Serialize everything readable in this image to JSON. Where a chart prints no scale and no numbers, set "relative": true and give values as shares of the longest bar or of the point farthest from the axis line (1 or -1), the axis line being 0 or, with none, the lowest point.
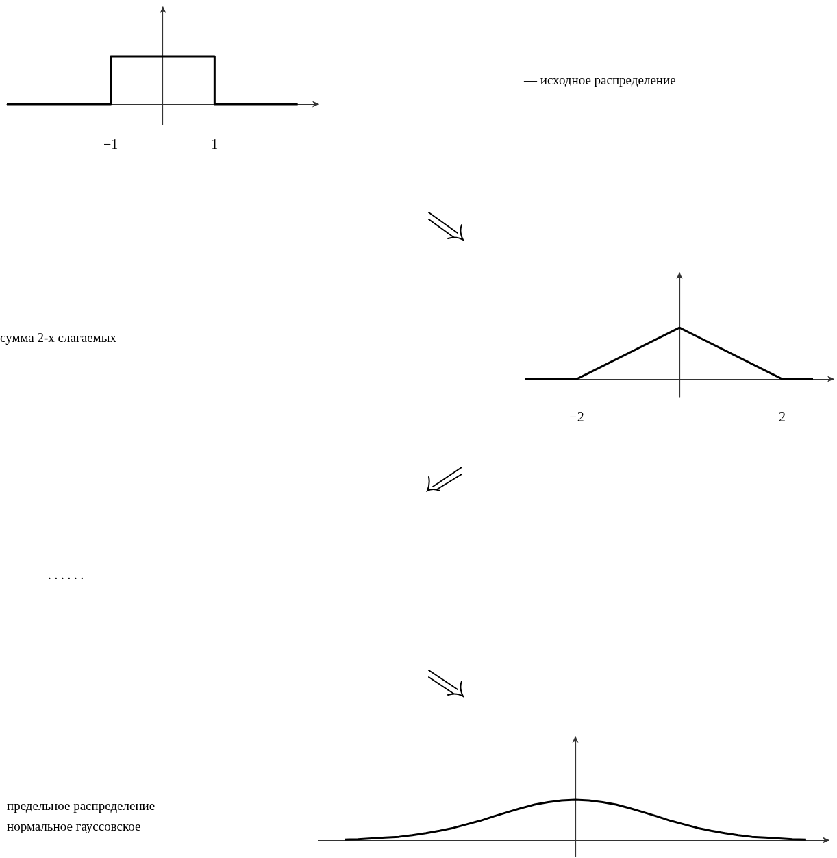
{
  "chart_data": [
    {
      "type": "line",
      "relative": true,
      "x": [
        -3,
        -1,
        -1,
        1,
        1,
        2.6
      ],
      "xlim": [
        -3,
        3
      ],
      "xticks": [
        {
          "value": -1,
          "label": "−1"
        },
        1
      ],
      "marker": "none",
      "grid": false,
      "annotations": [
        "— исходное распределение"
      ],
      "series": [
        {
          "color": "#000000",
          "values": [
            0,
            0,
            1,
            1,
            0,
            0
          ]
        }
      ]
    },
    {
      "type": "line",
      "relative": true,
      "x": [
        -3,
        -2,
        0,
        2,
        2.6
      ],
      "xlim": [
        -3,
        3
      ],
      "xticks": [
        {
          "value": -2,
          "label": "−2"
        },
        2
      ],
      "marker": "none",
      "grid": false,
      "annotations": [
        "сумма 2-х слагаемых —"
      ],
      "series": [
        {
          "color": "#000000",
          "values": [
            0,
            0,
            1,
            0,
            0
          ]
        }
      ]
    },
    {
      "type": "line",
      "relative": true,
      "categories": [
        null,
        null,
        null,
        null,
        null,
        null,
        null,
        null,
        null,
        null,
        null,
        null,
        null,
        null,
        null,
        null,
        null,
        null,
        null,
        null,
        null,
        null,
        null,
        null,
        null,
        null,
        null,
        null,
        null,
        null,
        null,
        null,
        null,
        null,
        null
      ],
      "marker": "none",
      "grid": false,
      "annotations": [
        ". . . . . .",
        "предельное распределение —\nнормальное гауссовское"
      ],
      "series": [
        {
          "color": "#000000",
          "values": [
            0.01,
            0.02,
            0.04,
            0.06,
            0.08,
            0.12,
            0.17,
            0.23,
            0.3,
            0.39,
            0.48,
            0.59,
            0.69,
            0.79,
            0.88,
            0.94,
            0.98,
            1,
            0.98,
            0.94,
            0.88,
            0.79,
            0.69,
            0.59,
            0.48,
            0.39,
            0.3,
            0.23,
            0.17,
            0.12,
            0.08,
            0.06,
            0.04,
            0.02,
            0.01
          ]
        }
      ]
    }
  ]
}
